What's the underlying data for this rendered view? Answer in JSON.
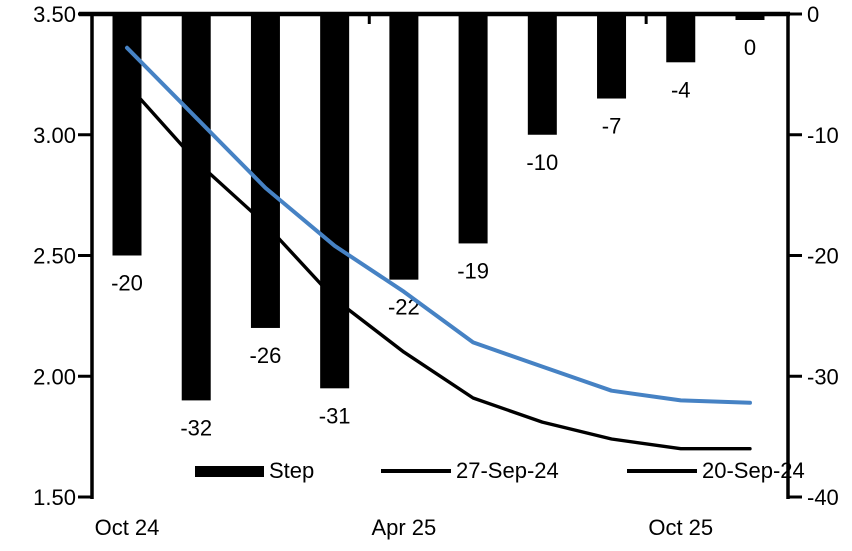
{
  "colors": {
    "bar": "#000000",
    "line_27sep": "#000000",
    "line_20sep": "#4682C4",
    "text": "#000000",
    "background": "#ffffff"
  },
  "legend": {
    "items": [
      {
        "label": "Step",
        "swatch": "bar",
        "color": "#000000"
      },
      {
        "label": "27-Sep-24",
        "swatch": "line",
        "color": "#000000"
      },
      {
        "label": "20-Sep-24",
        "swatch": "line",
        "color": "#4682C4"
      }
    ]
  },
  "chart_data": {
    "type": "combo (bar + line, dual axis)",
    "n_categories": 10,
    "categories": [
      "Oct 24",
      "",
      "",
      "",
      "Apr 25",
      "",
      "",
      "",
      "Oct 25",
      ""
    ],
    "x_tick_labels": [
      {
        "label": "Oct 24",
        "category_index": 0
      },
      {
        "label": "Apr 25",
        "category_index": 4
      },
      {
        "label": "Oct 25",
        "category_index": 8
      }
    ],
    "bar_series": {
      "name": "Step",
      "axis": "right",
      "unit": "bp",
      "values": [
        -20,
        -32,
        -26,
        -31,
        -22,
        -19,
        -10,
        -7,
        -4,
        0
      ],
      "data_labels": [
        "-20",
        "-32",
        "-26",
        "-31",
        "-22",
        "-19",
        "-10",
        "-7",
        "-4",
        "0"
      ]
    },
    "line_series": [
      {
        "name": "27-Sep-24",
        "axis": "left",
        "color": "#000000",
        "values": [
          3.21,
          2.89,
          2.63,
          2.32,
          2.1,
          1.91,
          1.81,
          1.74,
          1.7,
          1.7
        ]
      },
      {
        "name": "20-Sep-24",
        "axis": "left",
        "color": "#4682C4",
        "values": [
          3.36,
          3.07,
          2.78,
          2.54,
          2.35,
          2.14,
          2.04,
          1.94,
          1.9,
          1.89
        ]
      }
    ],
    "left_axis": {
      "tick_labels": [
        "3.50",
        "3.00",
        "2.50",
        "2.00",
        "1.50"
      ],
      "tick_values": [
        3.5,
        3.0,
        2.5,
        2.0,
        1.5
      ],
      "range": [
        1.5,
        3.5
      ]
    },
    "right_axis": {
      "tick_labels": [
        "0",
        "-10",
        "-20",
        "-30",
        "-40"
      ],
      "tick_values": [
        0,
        -10,
        -20,
        -30,
        -40
      ],
      "range": [
        -40,
        0
      ]
    },
    "grid": "off",
    "legend_position": "bottom-inside",
    "title": ""
  }
}
